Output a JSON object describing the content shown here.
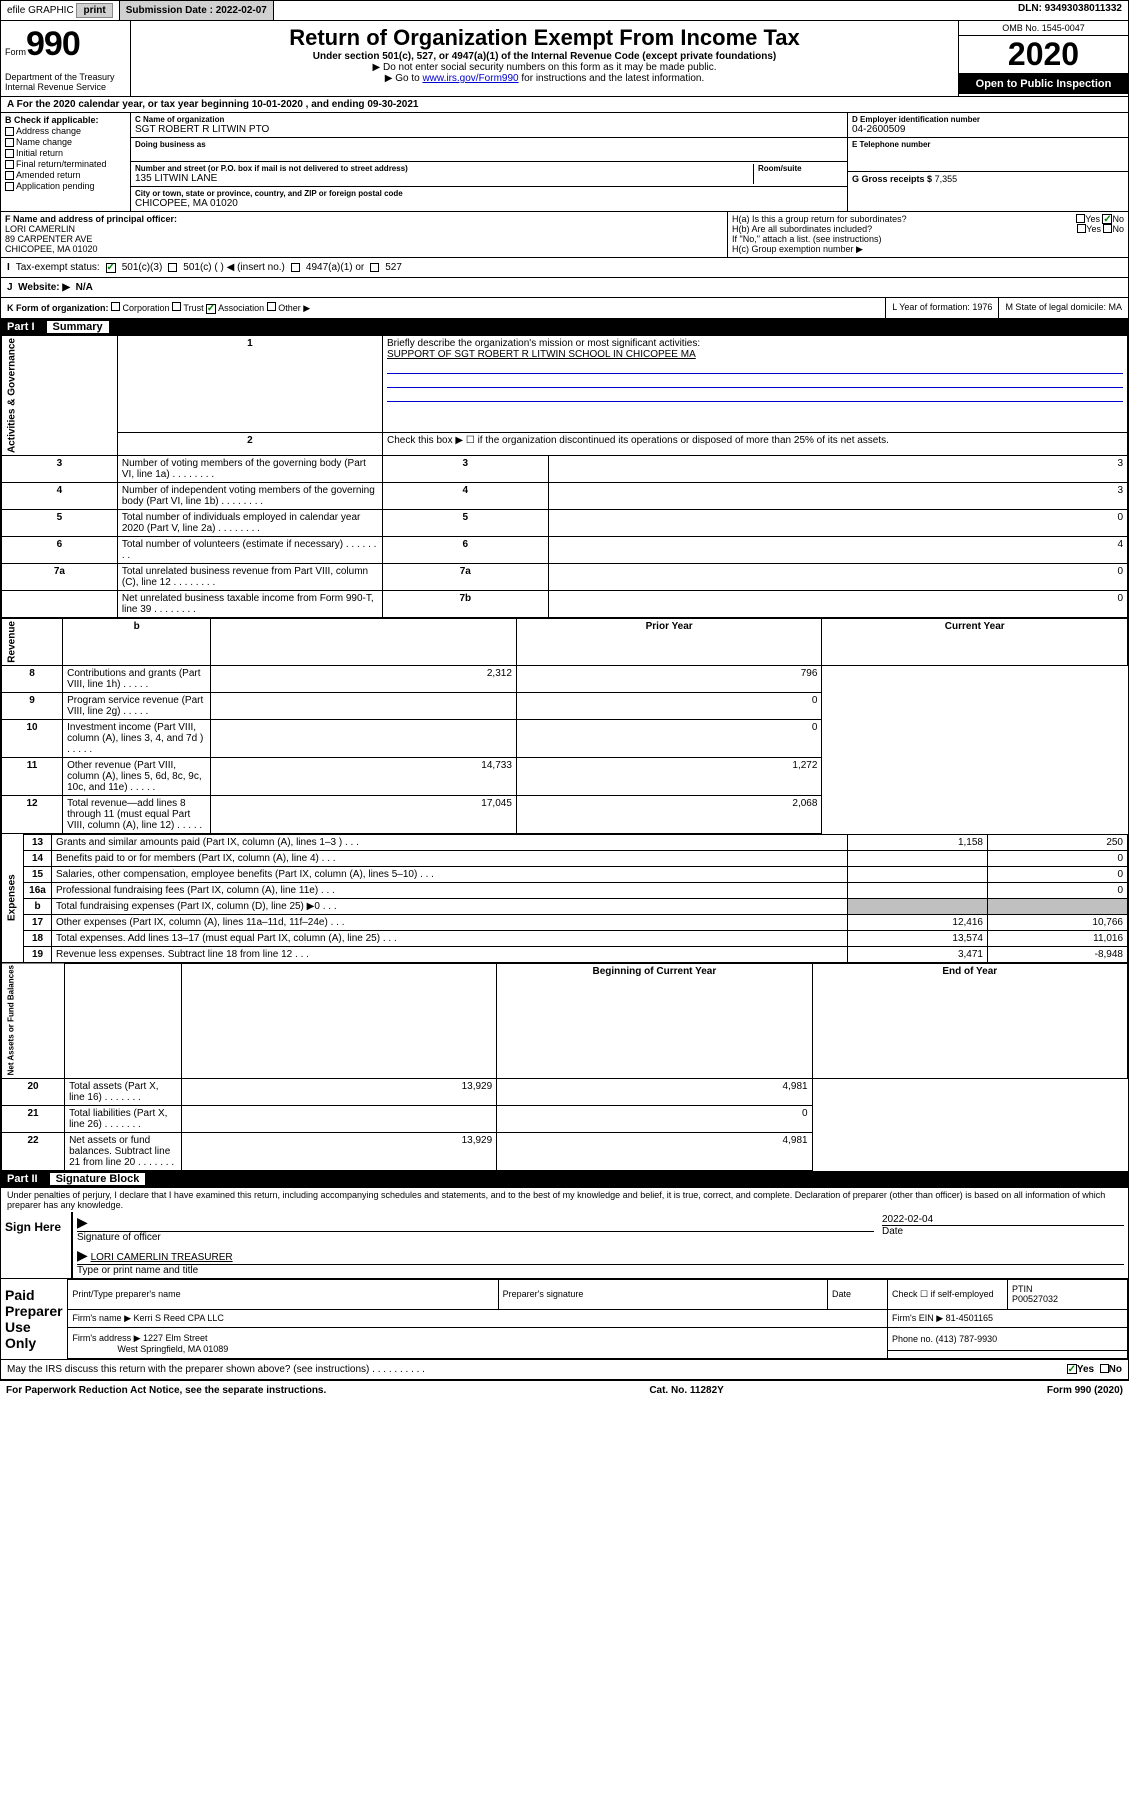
{
  "topbar": {
    "efile": "efile GRAPHIC",
    "print": "print",
    "sub_label": "Submission Date : 2022-02-07",
    "dln": "DLN: 93493038011332"
  },
  "header": {
    "form_label": "Form",
    "form_num": "990",
    "title": "Return of Organization Exempt From Income Tax",
    "subtitle": "Under section 501(c), 527, or 4947(a)(1) of the Internal Revenue Code (except private foundations)",
    "note1": "▶ Do not enter social security numbers on this form as it may be made public.",
    "note2_pre": "▶ Go to ",
    "note2_link": "www.irs.gov/Form990",
    "note2_post": " for instructions and the latest information.",
    "dept": "Department of the Treasury\nInternal Revenue Service",
    "omb": "OMB No. 1545-0047",
    "year": "2020",
    "open": "Open to Public Inspection"
  },
  "period": "A For the 2020 calendar year, or tax year beginning 10-01-2020   , and ending 09-30-2021",
  "boxB": {
    "label": "B Check if applicable:",
    "items": [
      "Address change",
      "Name change",
      "Initial return",
      "Final return/terminated",
      "Amended return",
      "Application pending"
    ]
  },
  "boxC": {
    "label": "C Name of organization",
    "name": "SGT ROBERT R LITWIN PTO",
    "dba_label": "Doing business as",
    "addr_label": "Number and street (or P.O. box if mail is not delivered to street address)",
    "room_label": "Room/suite",
    "addr": "135 LITWIN LANE",
    "city_label": "City or town, state or province, country, and ZIP or foreign postal code",
    "city": "CHICOPEE, MA  01020"
  },
  "boxD": {
    "label": "D Employer identification number",
    "val": "04-2600509"
  },
  "boxE": {
    "label": "E Telephone number",
    "val": ""
  },
  "boxG": {
    "label": "G Gross receipts $",
    "val": "7,355"
  },
  "boxF": {
    "label": "F  Name and address of principal officer:",
    "name": "LORI CAMERLIN",
    "addr": "89 CARPENTER AVE",
    "city": "CHICOPEE, MA  01020"
  },
  "boxH": {
    "a": "H(a)  Is this a group return for subordinates?",
    "b": "H(b)  Are all subordinates included?",
    "b_note": "If \"No,\" attach a list. (see instructions)",
    "c": "H(c)  Group exemption number ▶",
    "yes": "Yes",
    "no": "No"
  },
  "rowI": {
    "label": "I",
    "text": "Tax-exempt status:",
    "opts": [
      "501(c)(3)",
      "501(c) (  ) ◀ (insert no.)",
      "4947(a)(1) or",
      "527"
    ]
  },
  "rowJ": {
    "label": "J",
    "text": "Website: ▶",
    "val": "N/A"
  },
  "rowK": {
    "text": "K Form of organization:",
    "opts": [
      "Corporation",
      "Trust",
      "Association",
      "Other ▶"
    ],
    "l": "L Year of formation: 1976",
    "m": "M State of legal domicile: MA"
  },
  "part1": {
    "label": "Part I",
    "title": "Summary"
  },
  "summary": {
    "q1": "Briefly describe the organization's mission or most significant activities:",
    "mission": "SUPPORT OF SGT ROBERT R LITWIN SCHOOL IN CHICOPEE MA",
    "q2": "Check this box ▶ ☐  if the organization discontinued its operations or disposed of more than 25% of its net assets.",
    "rows": [
      {
        "n": "3",
        "t": "Number of voting members of the governing body (Part VI, line 1a)",
        "box": "3",
        "v": "3"
      },
      {
        "n": "4",
        "t": "Number of independent voting members of the governing body (Part VI, line 1b)",
        "box": "4",
        "v": "3"
      },
      {
        "n": "5",
        "t": "Total number of individuals employed in calendar year 2020 (Part V, line 2a)",
        "box": "5",
        "v": "0"
      },
      {
        "n": "6",
        "t": "Total number of volunteers (estimate if necessary)",
        "box": "6",
        "v": "4"
      },
      {
        "n": "7a",
        "t": "Total unrelated business revenue from Part VIII, column (C), line 12",
        "box": "7a",
        "v": "0"
      },
      {
        "n": "",
        "t": "Net unrelated business taxable income from Form 990-T, line 39",
        "box": "7b",
        "v": "0"
      }
    ]
  },
  "yrhdr": {
    "b": "b",
    "prior": "Prior Year",
    "curr": "Current Year"
  },
  "revenue": {
    "label": "Revenue",
    "rows": [
      {
        "n": "8",
        "t": "Contributions and grants (Part VIII, line 1h)",
        "p": "2,312",
        "c": "796"
      },
      {
        "n": "9",
        "t": "Program service revenue (Part VIII, line 2g)",
        "p": "",
        "c": "0"
      },
      {
        "n": "10",
        "t": "Investment income (Part VIII, column (A), lines 3, 4, and 7d )",
        "p": "",
        "c": "0"
      },
      {
        "n": "11",
        "t": "Other revenue (Part VIII, column (A), lines 5, 6d, 8c, 9c, 10c, and 11e)",
        "p": "14,733",
        "c": "1,272"
      },
      {
        "n": "12",
        "t": "Total revenue—add lines 8 through 11 (must equal Part VIII, column (A), line 12)",
        "p": "17,045",
        "c": "2,068"
      }
    ]
  },
  "expenses": {
    "label": "Expenses",
    "rows": [
      {
        "n": "13",
        "t": "Grants and similar amounts paid (Part IX, column (A), lines 1–3 )",
        "p": "1,158",
        "c": "250"
      },
      {
        "n": "14",
        "t": "Benefits paid to or for members (Part IX, column (A), line 4)",
        "p": "",
        "c": "0"
      },
      {
        "n": "15",
        "t": "Salaries, other compensation, employee benefits (Part IX, column (A), lines 5–10)",
        "p": "",
        "c": "0"
      },
      {
        "n": "16a",
        "t": "Professional fundraising fees (Part IX, column (A), line 11e)",
        "p": "",
        "c": "0"
      },
      {
        "n": "b",
        "t": "Total fundraising expenses (Part IX, column (D), line 25) ▶0",
        "p": "shaded",
        "c": "shaded"
      },
      {
        "n": "17",
        "t": "Other expenses (Part IX, column (A), lines 11a–11d, 11f–24e)",
        "p": "12,416",
        "c": "10,766"
      },
      {
        "n": "18",
        "t": "Total expenses. Add lines 13–17 (must equal Part IX, column (A), line 25)",
        "p": "13,574",
        "c": "11,016"
      },
      {
        "n": "19",
        "t": "Revenue less expenses. Subtract line 18 from line 12",
        "p": "3,471",
        "c": "-8,948"
      }
    ]
  },
  "netassets": {
    "label": "Net Assets or Fund Balances",
    "hdr_b": "Beginning of Current Year",
    "hdr_e": "End of Year",
    "rows": [
      {
        "n": "20",
        "t": "Total assets (Part X, line 16)",
        "p": "13,929",
        "c": "4,981"
      },
      {
        "n": "21",
        "t": "Total liabilities (Part X, line 26)",
        "p": "",
        "c": "0"
      },
      {
        "n": "22",
        "t": "Net assets or fund balances. Subtract line 21 from line 20",
        "p": "13,929",
        "c": "4,981"
      }
    ]
  },
  "part2": {
    "label": "Part II",
    "title": "Signature Block"
  },
  "penalties": "Under penalties of perjury, I declare that I have examined this return, including accompanying schedules and statements, and to the best of my knowledge and belief, it is true, correct, and complete. Declaration of preparer (other than officer) is based on all information of which preparer has any knowledge.",
  "sign": {
    "here": "Sign Here",
    "sig_label": "Signature of officer",
    "date_label": "Date",
    "date": "2022-02-04",
    "name": "LORI CAMERLIN  TREASURER",
    "name_label": "Type or print name and title"
  },
  "paid": {
    "label": "Paid Preparer Use Only",
    "h1": "Print/Type preparer's name",
    "h2": "Preparer's signature",
    "h3": "Date",
    "chk": "Check ☐  if self-employed",
    "ptin_l": "PTIN",
    "ptin": "P00527032",
    "firm_l": "Firm's name   ▶",
    "firm": "Kerri S Reed CPA LLC",
    "ein_l": "Firm's EIN ▶",
    "ein": "81-4501165",
    "addr_l": "Firm's address ▶",
    "addr": "1227 Elm Street",
    "addr2": "West Springfield, MA  01089",
    "phone_l": "Phone no.",
    "phone": "(413) 787-9930"
  },
  "discuss": "May the IRS discuss this return with the preparer shown above? (see instructions)",
  "footer": {
    "l": "For Paperwork Reduction Act Notice, see the separate instructions.",
    "c": "Cat. No. 11282Y",
    "r": "Form 990 (2020)"
  },
  "ag_label": "Activities & Governance"
}
